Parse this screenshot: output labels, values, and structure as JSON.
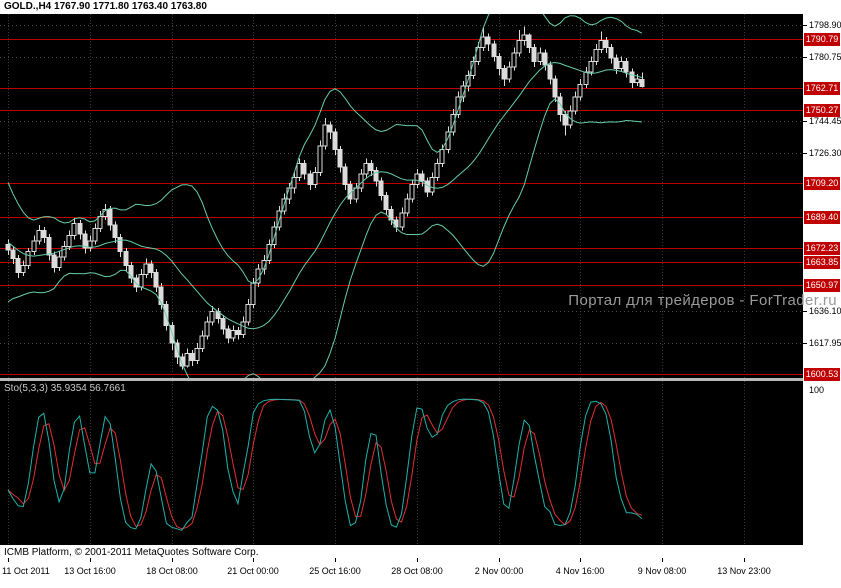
{
  "header": {
    "title": "GOLD.,H4 1767.90 1771.80 1763.40 1763.80"
  },
  "watermark": "Портал для трейдеров - ForTrader.ru",
  "footer": {
    "copyright": "ICMB Platform, © 2001-2011 MetaQuotes Software Corp."
  },
  "indicator_panel": {
    "label": "Sto(5,3,3) 35.9354 56.7661"
  },
  "colors": {
    "panel_bg": "#000000",
    "page_bg": "#ffffff",
    "candle": "#dcdcdc",
    "bull_fill": "#000000",
    "bollinger": "#66cdaa",
    "level_line": "#c00000",
    "badge_bg": "#c00000",
    "badge_text": "#ffffff",
    "grid": "#4a4a4a",
    "grid_vertical": "#383838",
    "sto_main": "#20b2aa",
    "sto_signal": "#e03030",
    "axis_text": "#000000",
    "watermark_text": "#9a9a9a"
  },
  "chart_data": {
    "type": "candlestick",
    "symbol": "GOLD",
    "timeframe": "H4",
    "current_bar": {
      "open": 1767.9,
      "high": 1771.8,
      "low": 1763.4,
      "close": 1763.8
    },
    "grid_prices": [
      1798.9,
      1780.75,
      1744.45,
      1726.3,
      1636.1,
      1617.95
    ],
    "price_lines": [
      1790.79,
      1762.71,
      1750.27,
      1709.2,
      1689.4,
      1672.23,
      1663.85,
      1650.97,
      1600.53
    ],
    "sto_scale_label": "100",
    "sto_range": [
      0,
      100
    ],
    "x_ticks": [
      {
        "index": 0,
        "label": "11 Oct 2011"
      },
      {
        "index": 16,
        "label": "13 Oct 16:00"
      },
      {
        "index": 32,
        "label": "18 Oct 08:00"
      },
      {
        "index": 48,
        "label": "21 Oct 00:00"
      },
      {
        "index": 64,
        "label": "25 Oct 16:00"
      },
      {
        "index": 80,
        "label": "28 Oct 08:00"
      },
      {
        "index": 96,
        "label": "2 Nov 00:00"
      },
      {
        "index": 112,
        "label": "4 Nov 16:00"
      },
      {
        "index": 128,
        "label": "9 Nov 08:00"
      },
      {
        "index": 144,
        "label": "13 Nov 23:00"
      }
    ],
    "ohlc": [
      [
        1674,
        1677,
        1668,
        1671
      ],
      [
        1671,
        1673,
        1663,
        1666
      ],
      [
        1666,
        1668,
        1655,
        1658
      ],
      [
        1658,
        1665,
        1656,
        1662
      ],
      [
        1662,
        1672,
        1660,
        1670
      ],
      [
        1670,
        1679,
        1668,
        1676
      ],
      [
        1676,
        1685,
        1674,
        1682
      ],
      [
        1682,
        1684,
        1675,
        1678
      ],
      [
        1678,
        1680,
        1665,
        1668
      ],
      [
        1668,
        1670,
        1658,
        1661
      ],
      [
        1661,
        1670,
        1659,
        1667
      ],
      [
        1667,
        1676,
        1665,
        1673
      ],
      [
        1673,
        1682,
        1671,
        1679
      ],
      [
        1679,
        1689,
        1677,
        1686
      ],
      [
        1686,
        1688,
        1677,
        1680
      ],
      [
        1680,
        1682,
        1669,
        1672
      ],
      [
        1672,
        1679,
        1670,
        1676
      ],
      [
        1676,
        1686,
        1674,
        1683
      ],
      [
        1683,
        1693,
        1681,
        1690
      ],
      [
        1690,
        1697,
        1688,
        1694
      ],
      [
        1694,
        1696,
        1682,
        1685
      ],
      [
        1685,
        1687,
        1675,
        1678
      ],
      [
        1678,
        1680,
        1667,
        1670
      ],
      [
        1670,
        1672,
        1659,
        1662
      ],
      [
        1662,
        1664,
        1652,
        1655
      ],
      [
        1655,
        1657,
        1647,
        1650
      ],
      [
        1650,
        1660,
        1648,
        1657
      ],
      [
        1657,
        1666,
        1655,
        1663
      ],
      [
        1663,
        1665,
        1655,
        1658
      ],
      [
        1658,
        1660,
        1647,
        1650
      ],
      [
        1650,
        1652,
        1637,
        1640
      ],
      [
        1640,
        1642,
        1625,
        1628
      ],
      [
        1628,
        1630,
        1614,
        1618
      ],
      [
        1618,
        1620,
        1606,
        1610
      ],
      [
        1610,
        1612,
        1603,
        1605
      ],
      [
        1605,
        1615,
        1604,
        1612
      ],
      [
        1612,
        1614,
        1605,
        1608
      ],
      [
        1608,
        1618,
        1606,
        1615
      ],
      [
        1615,
        1625,
        1613,
        1622
      ],
      [
        1622,
        1633,
        1620,
        1630
      ],
      [
        1630,
        1639,
        1628,
        1636
      ],
      [
        1636,
        1638,
        1629,
        1632
      ],
      [
        1632,
        1634,
        1623,
        1626
      ],
      [
        1626,
        1628,
        1618,
        1621
      ],
      [
        1621,
        1628,
        1619,
        1625
      ],
      [
        1625,
        1627,
        1620,
        1623
      ],
      [
        1623,
        1633,
        1621,
        1630
      ],
      [
        1630,
        1643,
        1628,
        1640
      ],
      [
        1640,
        1655,
        1638,
        1652
      ],
      [
        1652,
        1663,
        1650,
        1660
      ],
      [
        1660,
        1668,
        1657,
        1665
      ],
      [
        1665,
        1677,
        1663,
        1674
      ],
      [
        1674,
        1687,
        1672,
        1684
      ],
      [
        1684,
        1696,
        1682,
        1693
      ],
      [
        1693,
        1703,
        1691,
        1700
      ],
      [
        1700,
        1709,
        1697,
        1706
      ],
      [
        1706,
        1715,
        1703,
        1712
      ],
      [
        1712,
        1723,
        1710,
        1720
      ],
      [
        1720,
        1722,
        1711,
        1714
      ],
      [
        1714,
        1716,
        1705,
        1708
      ],
      [
        1708,
        1718,
        1706,
        1715
      ],
      [
        1715,
        1733,
        1713,
        1730
      ],
      [
        1730,
        1746,
        1728,
        1742
      ],
      [
        1742,
        1744,
        1734,
        1738
      ],
      [
        1738,
        1740,
        1725,
        1728
      ],
      [
        1728,
        1730,
        1715,
        1718
      ],
      [
        1718,
        1720,
        1705,
        1708
      ],
      [
        1708,
        1710,
        1697,
        1700
      ],
      [
        1700,
        1709,
        1698,
        1706
      ],
      [
        1706,
        1717,
        1704,
        1714
      ],
      [
        1714,
        1723,
        1712,
        1720
      ],
      [
        1720,
        1722,
        1713,
        1716
      ],
      [
        1716,
        1718,
        1707,
        1710
      ],
      [
        1710,
        1712,
        1699,
        1702
      ],
      [
        1702,
        1704,
        1691,
        1694
      ],
      [
        1694,
        1696,
        1685,
        1688
      ],
      [
        1688,
        1690,
        1681,
        1684
      ],
      [
        1684,
        1695,
        1682,
        1692
      ],
      [
        1692,
        1703,
        1690,
        1700
      ],
      [
        1700,
        1711,
        1698,
        1708
      ],
      [
        1708,
        1717,
        1706,
        1714
      ],
      [
        1714,
        1716,
        1707,
        1710
      ],
      [
        1710,
        1712,
        1701,
        1704
      ],
      [
        1704,
        1715,
        1702,
        1712
      ],
      [
        1712,
        1723,
        1710,
        1720
      ],
      [
        1720,
        1731,
        1718,
        1728
      ],
      [
        1728,
        1741,
        1726,
        1738
      ],
      [
        1738,
        1751,
        1736,
        1748
      ],
      [
        1748,
        1761,
        1746,
        1758
      ],
      [
        1758,
        1767,
        1755,
        1764
      ],
      [
        1764,
        1773,
        1761,
        1770
      ],
      [
        1770,
        1781,
        1768,
        1778
      ],
      [
        1778,
        1789,
        1776,
        1786
      ],
      [
        1786,
        1797,
        1784,
        1792
      ],
      [
        1792,
        1794,
        1784,
        1788
      ],
      [
        1788,
        1790,
        1778,
        1781
      ],
      [
        1781,
        1783,
        1770,
        1774
      ],
      [
        1774,
        1776,
        1764,
        1768
      ],
      [
        1768,
        1778,
        1766,
        1775
      ],
      [
        1775,
        1786,
        1773,
        1783
      ],
      [
        1783,
        1796,
        1781,
        1790
      ],
      [
        1790,
        1798,
        1787,
        1793
      ],
      [
        1793,
        1794,
        1783,
        1786
      ],
      [
        1786,
        1788,
        1775,
        1778
      ],
      [
        1778,
        1786,
        1776,
        1783
      ],
      [
        1783,
        1785,
        1773,
        1776
      ],
      [
        1776,
        1778,
        1765,
        1768
      ],
      [
        1768,
        1770,
        1755,
        1758
      ],
      [
        1758,
        1760,
        1744,
        1748
      ],
      [
        1748,
        1750,
        1736,
        1742
      ],
      [
        1742,
        1753,
        1740,
        1750
      ],
      [
        1750,
        1761,
        1748,
        1758
      ],
      [
        1758,
        1768,
        1756,
        1765
      ],
      [
        1765,
        1775,
        1763,
        1772
      ],
      [
        1772,
        1781,
        1770,
        1778
      ],
      [
        1778,
        1788,
        1776,
        1785
      ],
      [
        1785,
        1795,
        1783,
        1790
      ],
      [
        1790,
        1792,
        1783,
        1786
      ],
      [
        1786,
        1788,
        1777,
        1780
      ],
      [
        1780,
        1782,
        1771,
        1774
      ],
      [
        1774,
        1781,
        1772,
        1778
      ],
      [
        1778,
        1780,
        1769,
        1772
      ],
      [
        1772,
        1774,
        1763,
        1766
      ],
      [
        1766,
        1771,
        1764,
        1768
      ],
      [
        1767.9,
        1771.8,
        1763.4,
        1763.8
      ]
    ],
    "indicators": {
      "bollinger": {
        "period": 20,
        "deviation": 2,
        "seed_closes": [
          1712,
          1705,
          1698,
          1690,
          1684,
          1676,
          1668,
          1660,
          1652,
          1646,
          1652,
          1660,
          1668,
          1674,
          1680,
          1686,
          1680,
          1674,
          1670
        ]
      },
      "stochastic": {
        "k": 5,
        "d": 3,
        "slowing": 3,
        "current_main": 35.9354,
        "current_signal": 56.7661
      }
    }
  }
}
